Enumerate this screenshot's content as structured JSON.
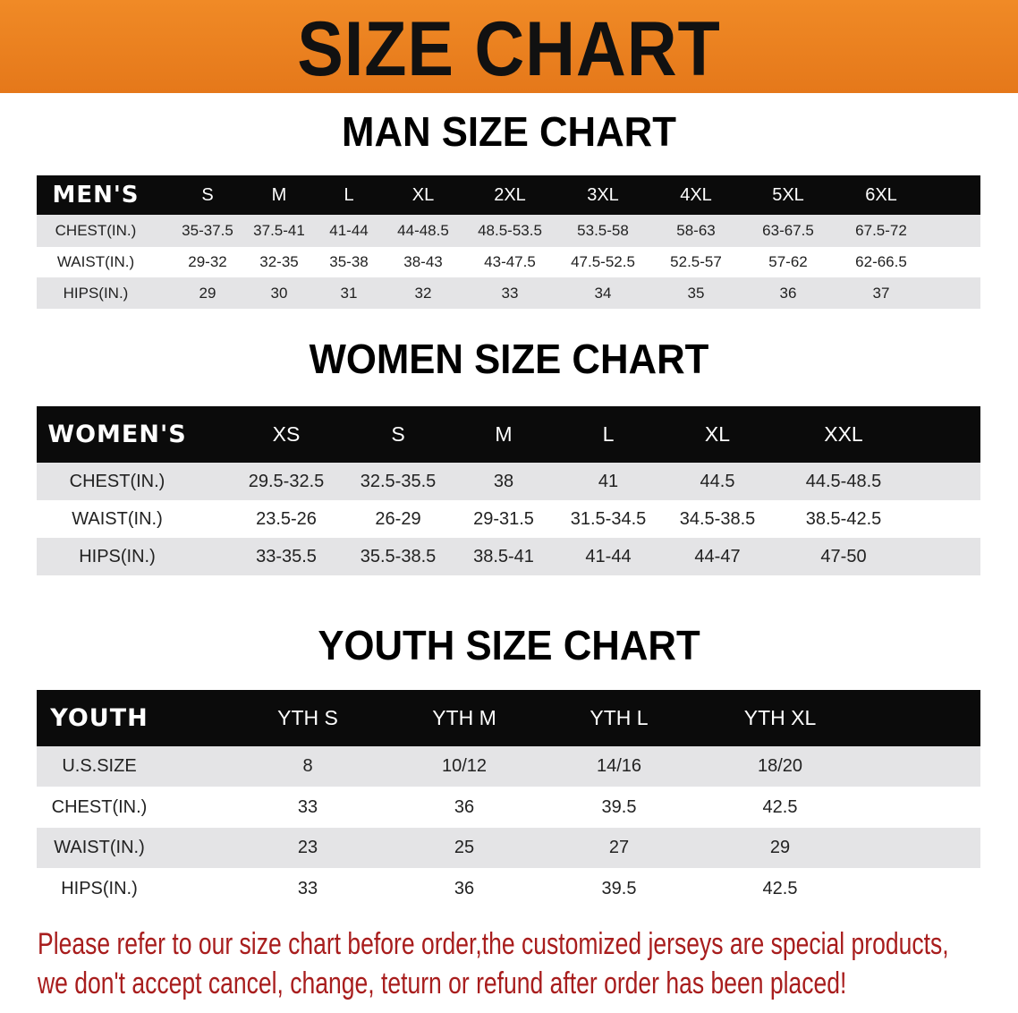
{
  "title": "SIZE CHART",
  "colors": {
    "banner": "#e9801e",
    "header_bg": "#0b0b0b",
    "stripe": "#e4e4e6",
    "notice": "#a81d1d"
  },
  "men": {
    "heading": "MAN SIZE CHART",
    "header": [
      "MEN'S",
      "S",
      "M",
      "L",
      "XL",
      "2XL",
      "3XL",
      "4XL",
      "5XL",
      "6XL"
    ],
    "rows": [
      [
        "CHEST(IN.)",
        "35-37.5",
        "37.5-41",
        "41-44",
        "44-48.5",
        "48.5-53.5",
        "53.5-58",
        "58-63",
        "63-67.5",
        "67.5-72"
      ],
      [
        "WAIST(IN.)",
        "29-32",
        "32-35",
        "35-38",
        "38-43",
        "43-47.5",
        "47.5-52.5",
        "52.5-57",
        "57-62",
        "62-66.5"
      ],
      [
        "HIPS(IN.)",
        "29",
        "30",
        "31",
        "32",
        "33",
        "34",
        "35",
        "36",
        "37"
      ]
    ]
  },
  "women": {
    "heading": "WOMEN SIZE CHART",
    "header": [
      "WOMEN'S",
      "XS",
      "S",
      "M",
      "L",
      "XL",
      "XXL"
    ],
    "rows": [
      [
        "CHEST(IN.)",
        "29.5-32.5",
        "32.5-35.5",
        "38",
        "41",
        "44.5",
        "44.5-48.5"
      ],
      [
        "WAIST(IN.)",
        "23.5-26",
        "26-29",
        "29-31.5",
        "31.5-34.5",
        "34.5-38.5",
        "38.5-42.5"
      ],
      [
        "HIPS(IN.)",
        "33-35.5",
        "35.5-38.5",
        "38.5-41",
        "41-44",
        "44-47",
        "47-50"
      ]
    ]
  },
  "youth": {
    "heading": "YOUTH SIZE CHART",
    "header": [
      "YOUTH",
      "YTH S",
      "YTH M",
      "YTH L",
      "YTH XL"
    ],
    "rows": [
      [
        "U.S.SIZE",
        "8",
        "10/12",
        "14/16",
        "18/20"
      ],
      [
        "CHEST(IN.)",
        "33",
        "36",
        "39.5",
        "42.5"
      ],
      [
        "WAIST(IN.)",
        "23",
        "25",
        "27",
        "29"
      ],
      [
        "HIPS(IN.)",
        "33",
        "36",
        "39.5",
        "42.5"
      ]
    ]
  },
  "notice": [
    "Please refer to our size chart before order,the customized jerseys are special products,",
    "we don't accept cancel, change, teturn or refund after order has been placed!"
  ]
}
